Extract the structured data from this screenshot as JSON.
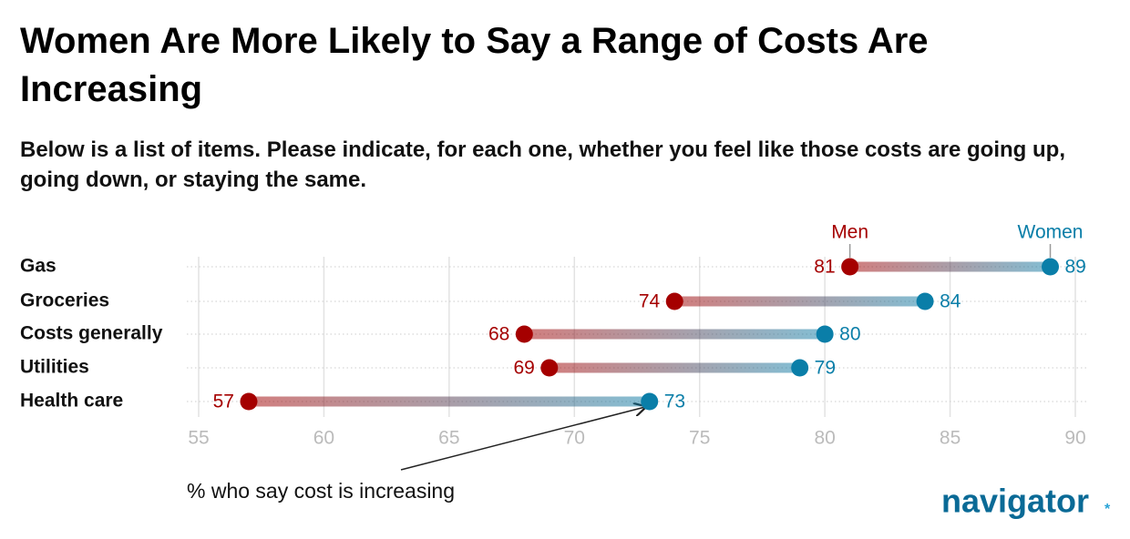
{
  "title": "Women Are More Likely to Say a Range of Costs Are Increasing",
  "subtitle": "Below is a list of items. Please indicate, for each one, whether you feel like those costs are going up, going down, or staying the same.",
  "chart_data": {
    "type": "dumbbell",
    "categories": [
      "Gas",
      "Groceries",
      "Costs generally",
      "Utilities",
      "Health care"
    ],
    "series": [
      {
        "name": "Men",
        "color": "#a50000",
        "values": [
          81,
          74,
          68,
          69,
          57
        ]
      },
      {
        "name": "Women",
        "color": "#0a7ea8",
        "values": [
          89,
          84,
          80,
          79,
          73
        ]
      }
    ],
    "xlim": [
      55,
      90
    ],
    "xticks": [
      55,
      60,
      65,
      70,
      75,
      80,
      85,
      90
    ],
    "grid": true,
    "annotation": "% who say cost is increasing"
  },
  "logo": "navigator"
}
